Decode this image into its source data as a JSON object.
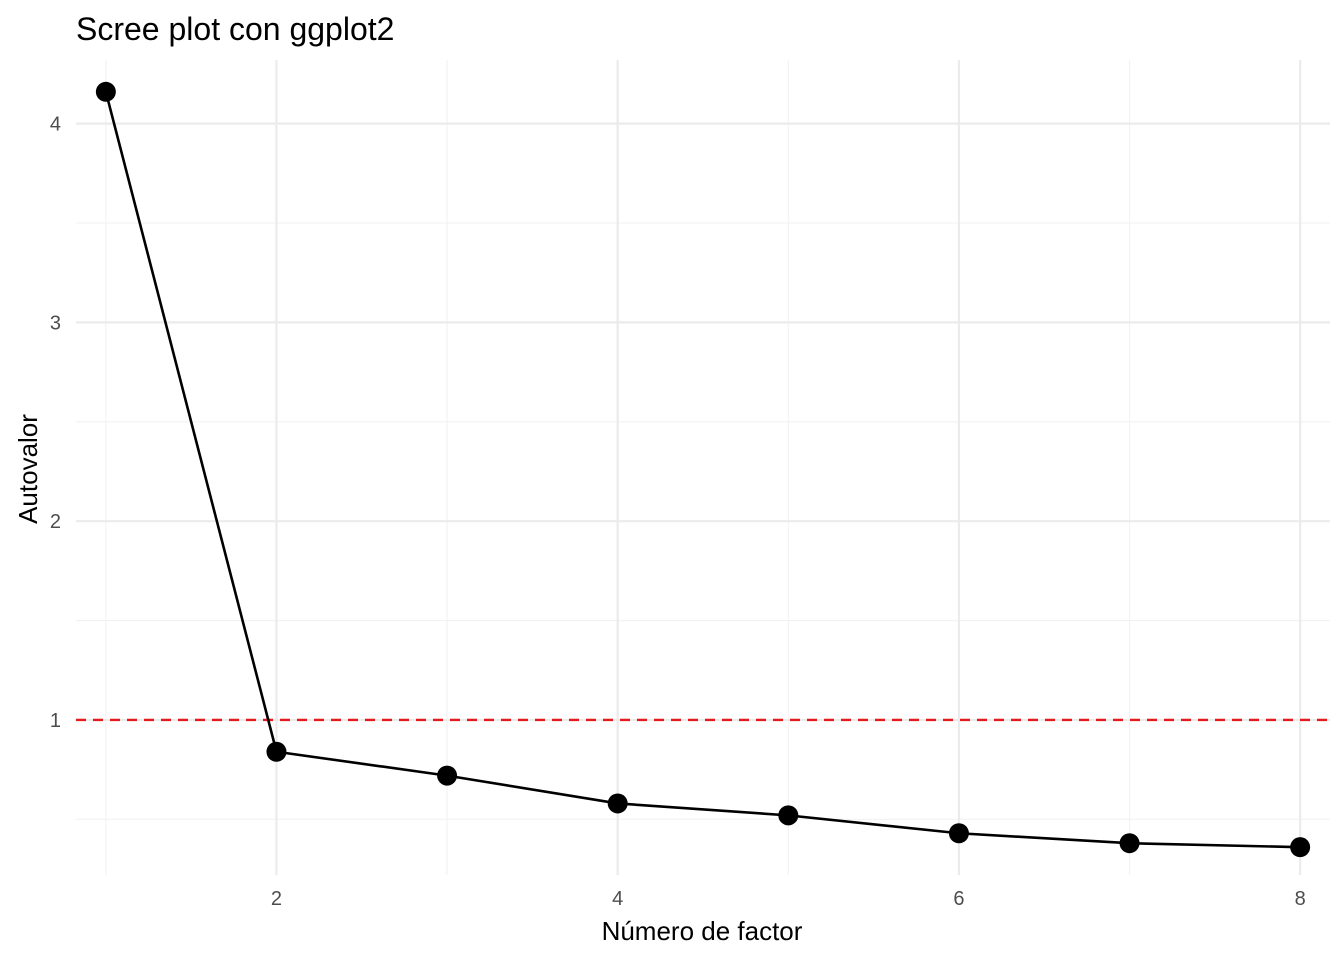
{
  "chart_data": {
    "type": "line",
    "title": "Scree plot con ggplot2",
    "xlabel": "Número de factor",
    "ylabel": "Autovalor",
    "x": [
      1,
      2,
      3,
      4,
      5,
      6,
      7,
      8
    ],
    "series": [
      {
        "values": [
          4.16,
          0.84,
          0.72,
          0.58,
          0.52,
          0.43,
          0.38,
          0.36
        ]
      }
    ],
    "reference_line": {
      "y": 1,
      "style": "dashed",
      "color": "#e41a1c"
    },
    "xlim": [
      0.825,
      8.175
    ],
    "ylim": [
      0.22,
      4.32
    ],
    "x_ticks": [
      2,
      4,
      6,
      8
    ],
    "x_minor_ticks": [
      1,
      3,
      5,
      7
    ],
    "y_ticks": [
      1,
      2,
      3,
      4
    ],
    "y_minor_ticks": [
      0.5,
      1.5,
      2.5,
      3.5
    ],
    "grid": true,
    "line_color": "#000000",
    "point_color": "#000000"
  }
}
